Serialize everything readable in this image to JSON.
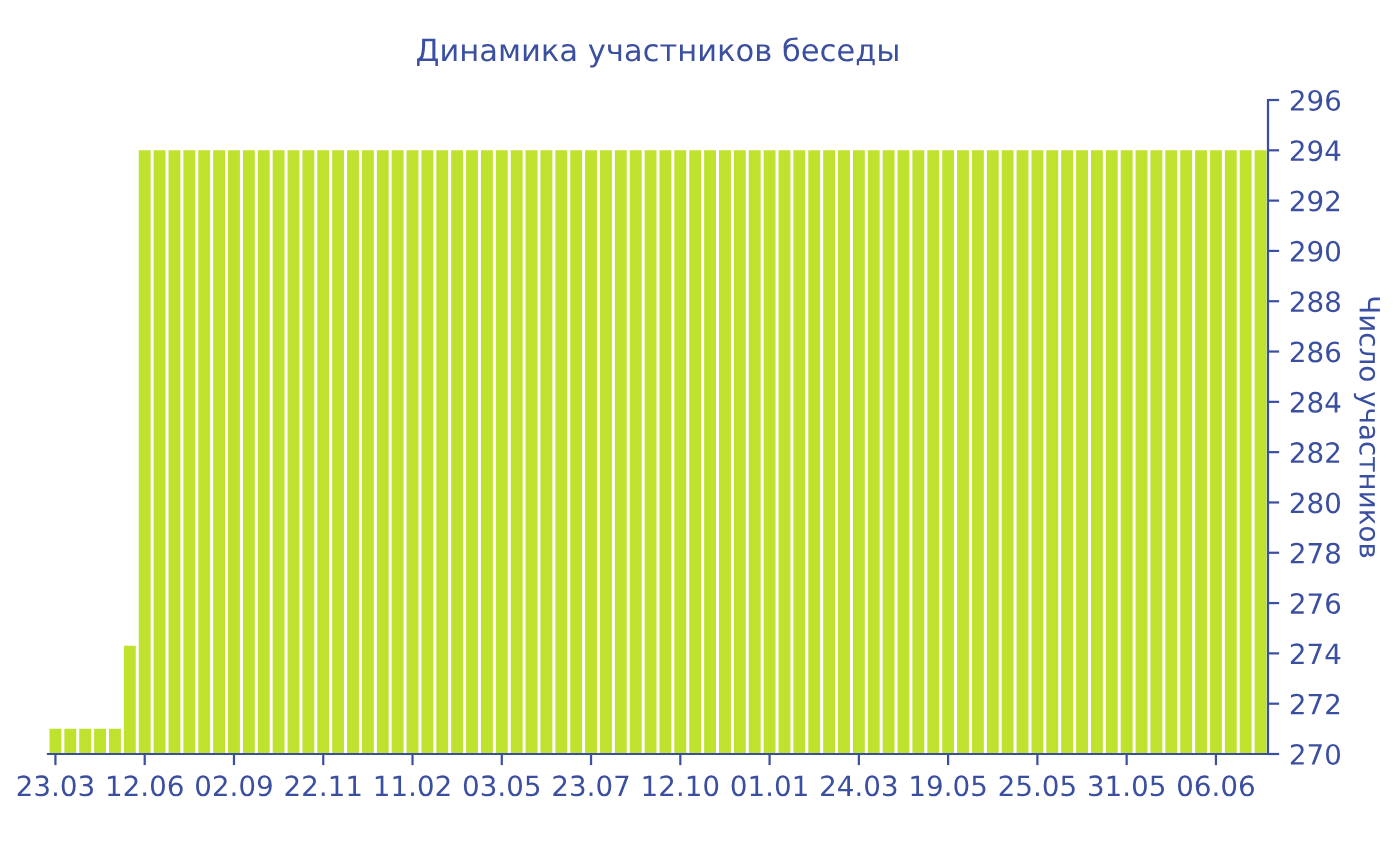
{
  "chart_data": {
    "type": "bar",
    "title": "Динамика участников беседы",
    "ylabel": "Число участников",
    "categories": [
      "23.03",
      null,
      null,
      null,
      null,
      null,
      "12.06",
      null,
      null,
      null,
      null,
      null,
      "02.09",
      null,
      null,
      null,
      null,
      null,
      "22.11",
      null,
      null,
      null,
      null,
      null,
      "11.02",
      null,
      null,
      null,
      null,
      null,
      "03.05",
      null,
      null,
      null,
      null,
      null,
      "23.07",
      null,
      null,
      null,
      null,
      null,
      "12.10",
      null,
      null,
      null,
      null,
      null,
      "01.01",
      null,
      null,
      null,
      null,
      null,
      "24.03",
      null,
      null,
      null,
      null,
      null,
      "19.05",
      null,
      null,
      null,
      null,
      null,
      "25.05",
      null,
      null,
      null,
      null,
      null,
      "31.05",
      null,
      null,
      null,
      null,
      null,
      "06.06",
      null,
      null,
      null
    ],
    "values": [
      271,
      271,
      271,
      271,
      271,
      274.3,
      294,
      294,
      294,
      294,
      294,
      294,
      294,
      294,
      294,
      294,
      294,
      294,
      294,
      294,
      294,
      294,
      294,
      294,
      294,
      294,
      294,
      294,
      294,
      294,
      294,
      294,
      294,
      294,
      294,
      294,
      294,
      294,
      294,
      294,
      294,
      294,
      294,
      294,
      294,
      294,
      294,
      294,
      294,
      294,
      294,
      294,
      294,
      294,
      294,
      294,
      294,
      294,
      294,
      294,
      294,
      294,
      294,
      294,
      294,
      294,
      294,
      294,
      294,
      294,
      294,
      294,
      294,
      294,
      294,
      294,
      294,
      294,
      294,
      294,
      294,
      294
    ],
    "color": "#bfe22f",
    "ylim": [
      270,
      296
    ],
    "yticks": [
      270,
      272,
      274,
      276,
      278,
      280,
      282,
      284,
      286,
      288,
      290,
      292,
      294,
      296
    ]
  }
}
